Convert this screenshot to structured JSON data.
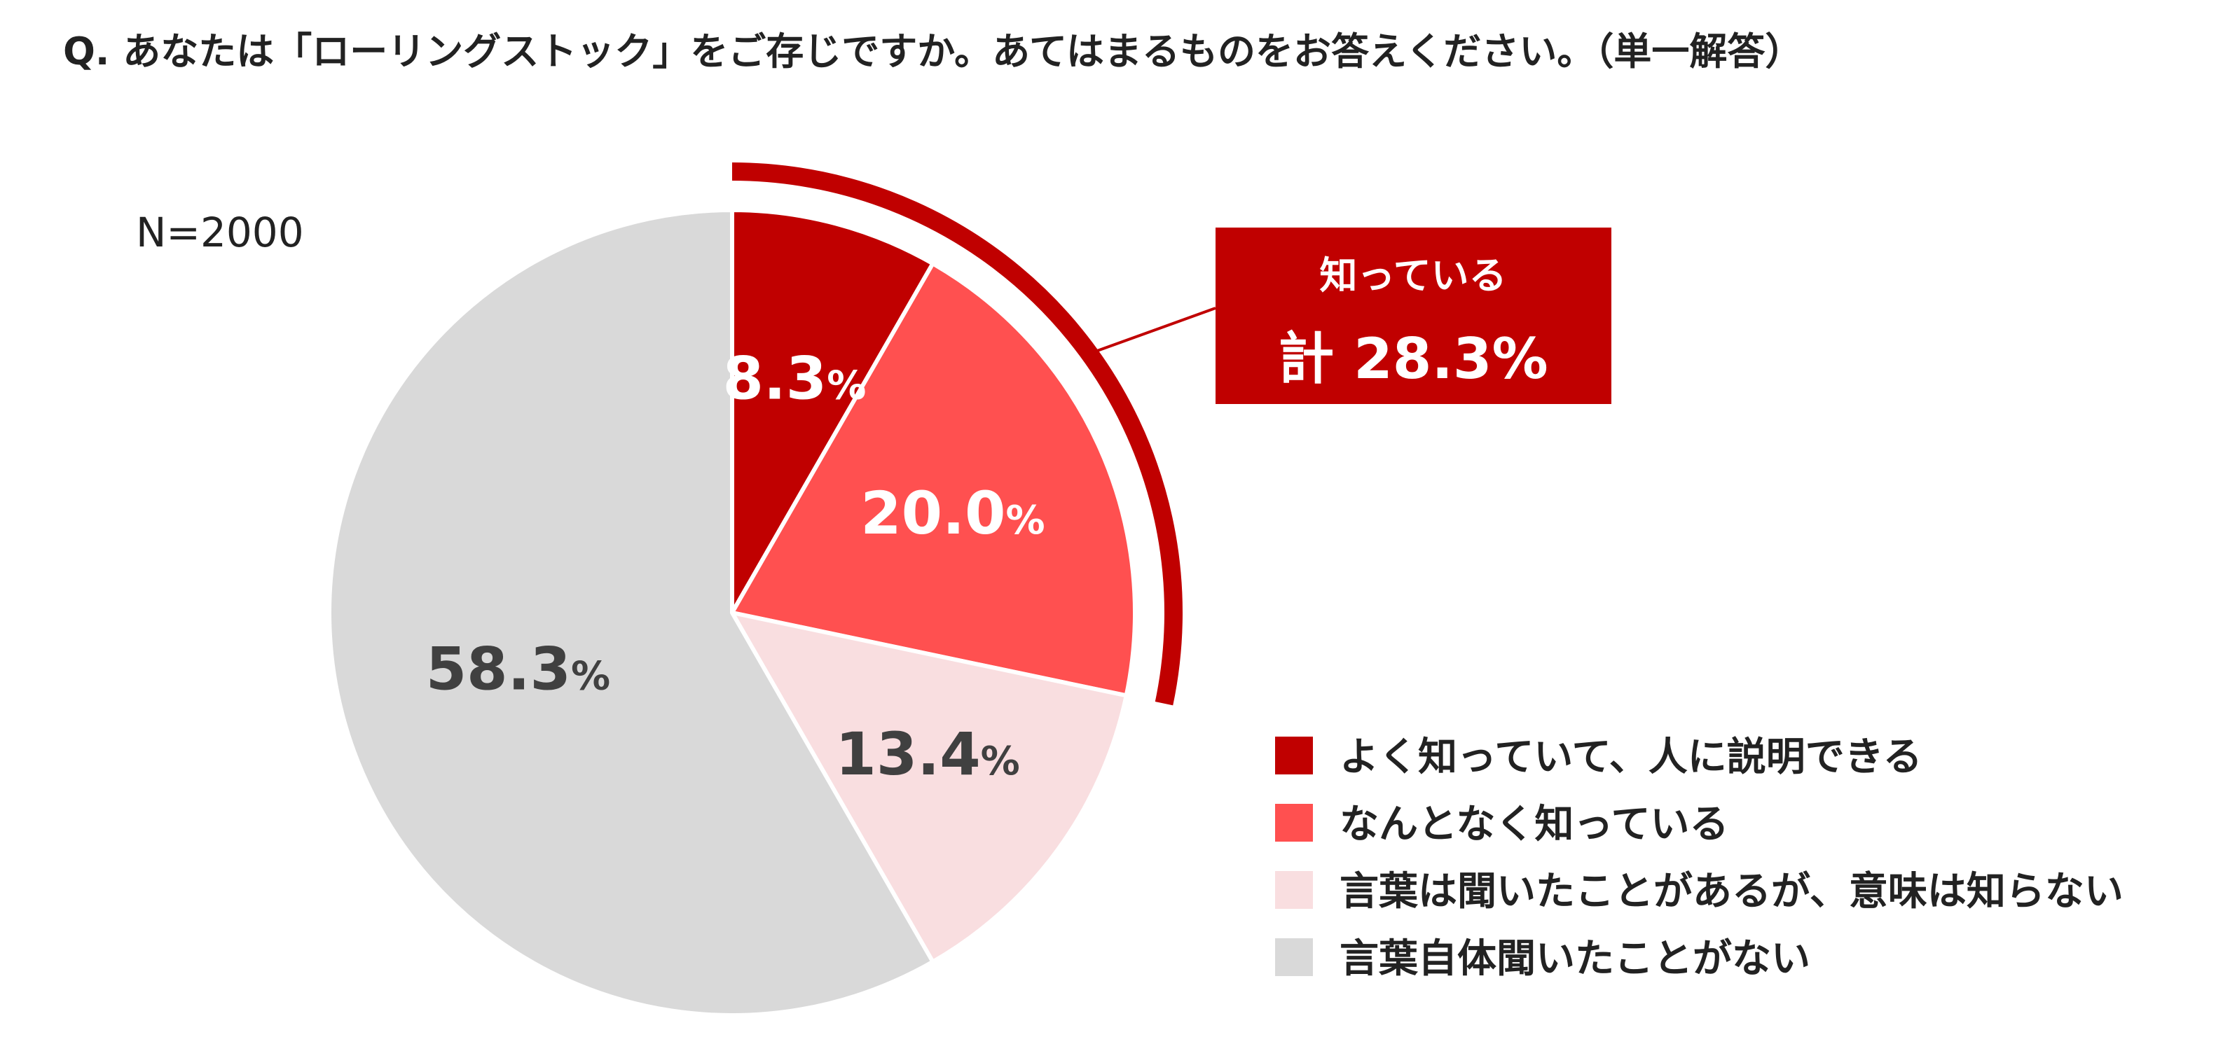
{
  "title": "Q. あなたは「ローリングストック」をご存じですか。あてはまるものをお答えください。（単一解答）",
  "sample": "N=2000",
  "colors": {
    "well_known": "#C00000",
    "somewhat_known": "#FF5050",
    "heard_only": "#F9DEE0",
    "never_heard": "#D9D9D9",
    "accent": "#C00000"
  },
  "callout": {
    "line1": "知っている",
    "line2": "計 28.3%"
  },
  "chart_data": {
    "type": "pie",
    "title": "Q. あなたは「ローリングストック」をご存じですか。あてはまるものをお答えください。（単一解答）",
    "n": 2000,
    "start": "12 o'clock",
    "direction": "clockwise",
    "labels": [
      "よく知っていて、人に説明できる",
      "なんとなく知っている",
      "言葉は聞いたことがあるが、意味は知らない",
      "言葉自体聞いたことがない"
    ],
    "values": [
      8.3,
      20.0,
      13.4,
      58.3
    ],
    "value_labels": [
      "8.3",
      "20.0",
      "13.4",
      "58.3"
    ],
    "unit": "%",
    "colors": [
      "#C00000",
      "#FF5050",
      "#F9DEE0",
      "#D9D9D9"
    ],
    "label_colors": [
      "#ffffff",
      "#ffffff",
      "#404040",
      "#404040"
    ],
    "legend_position": "bottom-right",
    "grouped": {
      "label": "知っている",
      "total": "計 28.3%",
      "members": [
        0,
        1
      ]
    }
  }
}
